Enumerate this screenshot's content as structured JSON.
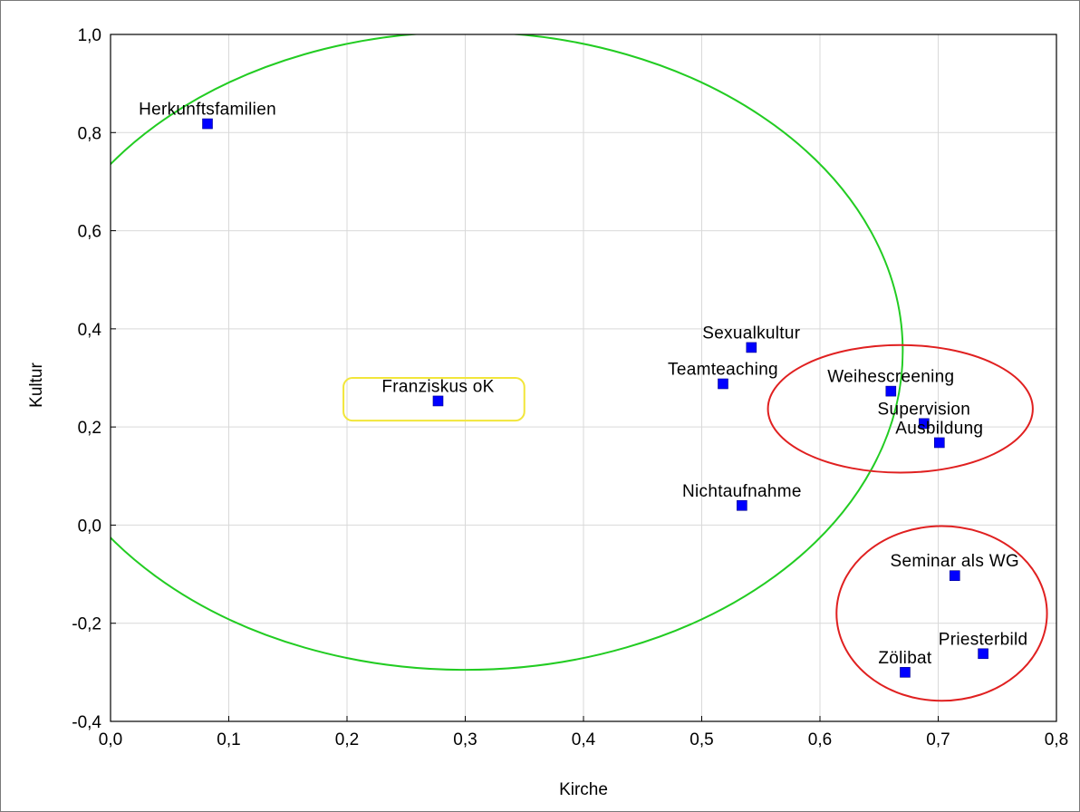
{
  "chart_data": {
    "type": "scatter",
    "xlabel": "Kirche",
    "ylabel": "Kultur",
    "xlim": [
      0.0,
      0.8
    ],
    "ylim": [
      -0.4,
      1.0
    ],
    "grid": true,
    "x_ticks": [
      "0,0",
      "0,1",
      "0,2",
      "0,3",
      "0,4",
      "0,5",
      "0,6",
      "0,7",
      "0,8"
    ],
    "y_ticks": [
      "-0,4",
      "-0,2",
      "0,0",
      "0,2",
      "0,4",
      "0,6",
      "0,8",
      "1,0"
    ],
    "marker_color": "#0000ff",
    "points": [
      {
        "label": "Herkunftsfamilien",
        "x": 0.082,
        "y": 0.818
      },
      {
        "label": "Franziskus oK",
        "x": 0.277,
        "y": 0.253
      },
      {
        "label": "Sexualkultur",
        "x": 0.542,
        "y": 0.362
      },
      {
        "label": "Teamteaching",
        "x": 0.518,
        "y": 0.288
      },
      {
        "label": "Weihescreening",
        "x": 0.66,
        "y": 0.273
      },
      {
        "label": "Supervision",
        "x": 0.688,
        "y": 0.207
      },
      {
        "label": "Ausbildung",
        "x": 0.701,
        "y": 0.168
      },
      {
        "label": "Nichtaufnahme",
        "x": 0.534,
        "y": 0.04
      },
      {
        "label": "Seminar als WG",
        "x": 0.714,
        "y": -0.103
      },
      {
        "label": "Priesterbild",
        "x": 0.738,
        "y": -0.262
      },
      {
        "label": "Zölibat",
        "x": 0.672,
        "y": -0.3
      }
    ],
    "annotations": [
      {
        "shape": "ellipse",
        "color": "#22cc22",
        "cx": 0.3,
        "cy": 0.355,
        "rx": 0.37,
        "ry": 0.65
      },
      {
        "shape": "rounded-rect",
        "color": "#f2e63a",
        "x0": 0.197,
        "x1": 0.35,
        "y0": 0.213,
        "y1": 0.3
      },
      {
        "shape": "ellipse",
        "color": "#e02020",
        "cx": 0.668,
        "cy": 0.237,
        "rx": 0.112,
        "ry": 0.13
      },
      {
        "shape": "ellipse",
        "color": "#e02020",
        "cx": 0.703,
        "cy": -0.18,
        "rx": 0.089,
        "ry": 0.178
      }
    ]
  }
}
